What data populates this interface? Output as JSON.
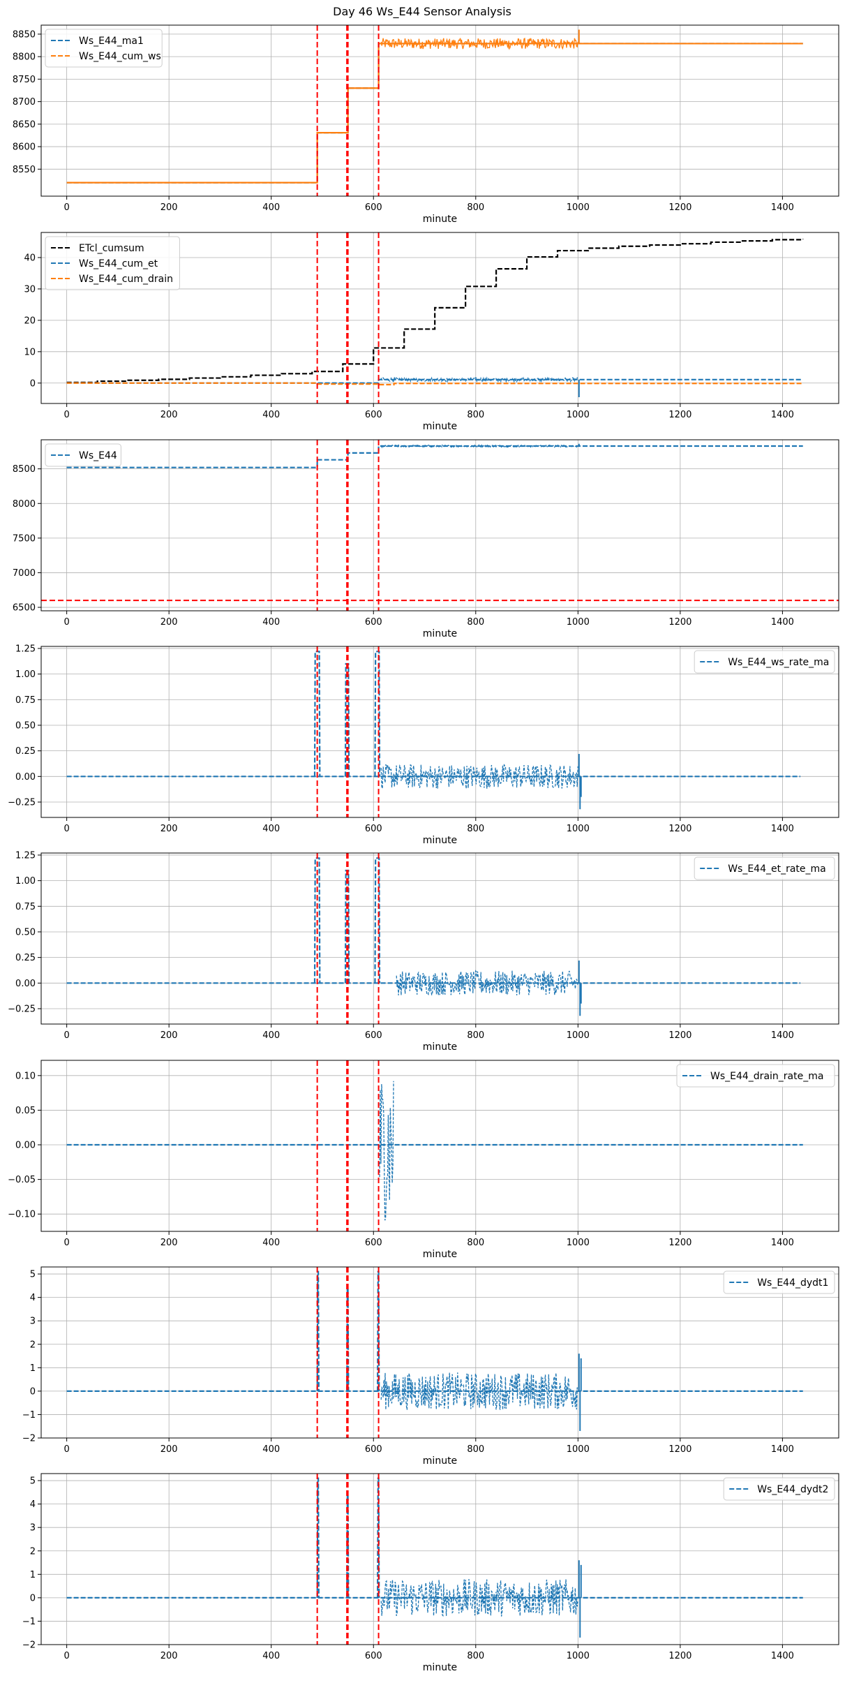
{
  "figure": {
    "title": "Day 46 Ws_E44 Sensor Analysis"
  },
  "colors": {
    "blue": "#1f77b4",
    "orange": "#ff7f0e",
    "black": "#000000",
    "red": "#ff0000",
    "grid": "#b0b0b0"
  },
  "chart_data": [
    {
      "type": "line",
      "xlabel": "minute",
      "xlim": [
        -50,
        1510
      ],
      "ylim": [
        8490,
        8870
      ],
      "yticks": [
        8550,
        8600,
        8650,
        8700,
        8750,
        8800,
        8850
      ],
      "xticks": [
        0,
        200,
        400,
        600,
        800,
        1000,
        1200,
        1400
      ],
      "grid": true,
      "legend": "top-left",
      "vlines": [
        490,
        548,
        550,
        610
      ],
      "hlines": [],
      "series": [
        {
          "name": "Ws_E44_ma1",
          "color": "#1f77b4",
          "dashed": true,
          "kind": "step",
          "steps": [
            [
              0,
              8520
            ],
            [
              490,
              8631
            ],
            [
              550,
              8730
            ],
            [
              610,
              8829
            ],
            [
              1440,
              8829
            ]
          ]
        },
        {
          "name": "Ws_E44_cum_ws",
          "color": "#ff7f0e",
          "dashed": false,
          "kind": "step",
          "steps": [
            [
              0,
              8520
            ],
            [
              490,
              8631
            ],
            [
              550,
              8730
            ],
            [
              610,
              8829
            ],
            [
              1440,
              8829
            ]
          ],
          "noise": [
            [
              615,
              1000,
              8829,
              12
            ]
          ],
          "spikes": [
            [
              1002,
              8860
            ]
          ]
        }
      ]
    },
    {
      "type": "line",
      "xlabel": "minute",
      "xlim": [
        -50,
        1510
      ],
      "ylim": [
        -6.5,
        48
      ],
      "yticks": [
        0,
        10,
        20,
        30,
        40
      ],
      "xticks": [
        0,
        200,
        400,
        600,
        800,
        1000,
        1200,
        1400
      ],
      "grid": true,
      "legend": "top-left",
      "vlines": [
        490,
        548,
        550,
        610
      ],
      "hlines": [],
      "series": [
        {
          "name": "ETcl_cumsum",
          "color": "#000000",
          "dashed": true,
          "kind": "step",
          "steps": [
            [
              0,
              0.2
            ],
            [
              60,
              0.6
            ],
            [
              120,
              0.9
            ],
            [
              180,
              1.2
            ],
            [
              240,
              1.6
            ],
            [
              300,
              2.0
            ],
            [
              360,
              2.5
            ],
            [
              420,
              3.0
            ],
            [
              480,
              3.7
            ],
            [
              540,
              6.1
            ],
            [
              600,
              11.2
            ],
            [
              660,
              17.2
            ],
            [
              720,
              24.0
            ],
            [
              780,
              30.8
            ],
            [
              840,
              36.4
            ],
            [
              900,
              40.2
            ],
            [
              960,
              42.2
            ],
            [
              1020,
              43.0
            ],
            [
              1080,
              43.6
            ],
            [
              1140,
              44.0
            ],
            [
              1200,
              44.4
            ],
            [
              1260,
              44.9
            ],
            [
              1320,
              45.3
            ],
            [
              1380,
              45.7
            ],
            [
              1440,
              45.9
            ]
          ]
        },
        {
          "name": "Ws_E44_cum_et",
          "color": "#1f77b4",
          "dashed": true,
          "kind": "step",
          "steps": [
            [
              0,
              0
            ],
            [
              490,
              0
            ],
            [
              610,
              1.1
            ],
            [
              1440,
              1.1
            ]
          ],
          "noise": [
            [
              615,
              1000,
              1.1,
              0.6
            ]
          ],
          "spikes": [
            [
              1002,
              -4.5
            ]
          ]
        },
        {
          "name": "Ws_E44_cum_drain",
          "color": "#ff7f0e",
          "dashed": true,
          "kind": "step",
          "steps": [
            [
              0,
              0
            ],
            [
              490,
              -0.3
            ],
            [
              610,
              -0.5
            ],
            [
              640,
              -0.1
            ],
            [
              1440,
              -0.1
            ]
          ]
        }
      ]
    },
    {
      "type": "line",
      "xlabel": "minute",
      "xlim": [
        -50,
        1510
      ],
      "ylim": [
        6450,
        8920
      ],
      "yticks": [
        6500,
        7000,
        7500,
        8000,
        8500
      ],
      "xticks": [
        0,
        200,
        400,
        600,
        800,
        1000,
        1200,
        1400
      ],
      "grid": true,
      "legend": "top-left",
      "vlines": [
        490,
        548,
        550,
        610
      ],
      "hlines": [
        6600
      ],
      "series": [
        {
          "name": "Ws_E44",
          "color": "#1f77b4",
          "dashed": true,
          "kind": "step",
          "steps": [
            [
              0,
              8520
            ],
            [
              490,
              8631
            ],
            [
              550,
              8730
            ],
            [
              610,
              8829
            ],
            [
              1440,
              8829
            ]
          ],
          "noise": [
            [
              615,
              1000,
              8829,
              15
            ]
          ],
          "spikes": [
            [
              1002,
              8862
            ]
          ]
        }
      ]
    },
    {
      "type": "line",
      "xlabel": "minute",
      "xlim": [
        -50,
        1510
      ],
      "ylim": [
        -0.4,
        1.27
      ],
      "yticks": [
        -0.25,
        0.0,
        0.25,
        0.5,
        0.75,
        1.0,
        1.25
      ],
      "tickDecimals": 2,
      "xticks": [
        0,
        200,
        400,
        600,
        800,
        1000,
        1200,
        1400
      ],
      "grid": true,
      "legend": "top-right",
      "vlines": [
        490,
        548,
        550,
        610
      ],
      "hlines": [],
      "series": [
        {
          "name": "Ws_E44_ws_rate_ma",
          "color": "#1f77b4",
          "dashed": true,
          "kind": "pulses",
          "base": 0.0,
          "xmax": 1435,
          "pulses": [
            [
              485,
              495,
              1.22
            ],
            [
              545,
              552,
              1.1
            ],
            [
              603,
              612,
              1.22
            ]
          ],
          "noise": [
            [
              615,
              1000,
              0.0,
              0.12
            ]
          ],
          "spikes": [
            [
              1002,
              0.22
            ],
            [
              1004,
              -0.32
            ],
            [
              1006,
              -0.2
            ]
          ]
        }
      ]
    },
    {
      "type": "line",
      "xlabel": "minute",
      "xlim": [
        -50,
        1510
      ],
      "ylim": [
        -0.4,
        1.27
      ],
      "yticks": [
        -0.25,
        0.0,
        0.25,
        0.5,
        0.75,
        1.0,
        1.25
      ],
      "tickDecimals": 2,
      "xticks": [
        0,
        200,
        400,
        600,
        800,
        1000,
        1200,
        1400
      ],
      "grid": true,
      "legend": "top-right",
      "vlines": [
        490,
        548,
        550,
        610
      ],
      "hlines": [],
      "series": [
        {
          "name": "Ws_E44_et_rate_ma",
          "color": "#1f77b4",
          "dashed": true,
          "kind": "pulses",
          "base": 0.0,
          "xmax": 1435,
          "pulses": [
            [
              485,
              495,
              1.22
            ],
            [
              545,
              552,
              1.1
            ],
            [
              603,
              612,
              1.22
            ]
          ],
          "noise": [
            [
              645,
              1000,
              0.0,
              0.12
            ]
          ],
          "spikes": [
            [
              1002,
              0.22
            ],
            [
              1004,
              -0.32
            ],
            [
              1006,
              -0.2
            ]
          ]
        }
      ]
    },
    {
      "type": "line",
      "xlabel": "minute",
      "xlim": [
        -50,
        1510
      ],
      "ylim": [
        -0.125,
        0.122
      ],
      "yticks": [
        -0.1,
        -0.05,
        0.0,
        0.05,
        0.1
      ],
      "tickDecimals": 2,
      "xticks": [
        0,
        200,
        400,
        600,
        800,
        1000,
        1200,
        1400
      ],
      "grid": true,
      "legend": "top-right",
      "vlines": [
        490,
        548,
        550,
        610
      ],
      "hlines": [],
      "series": [
        {
          "name": "Ws_E44_drain_rate_ma",
          "color": "#1f77b4",
          "dashed": true,
          "kind": "pulses",
          "base": 0.0,
          "xmax": 1440,
          "pulses": [],
          "noise": [
            [
              612,
              640,
              0.0,
              0.11
            ]
          ],
          "spikes": []
        }
      ]
    },
    {
      "type": "line",
      "xlabel": "minute",
      "xlim": [
        -50,
        1510
      ],
      "ylim": [
        -2,
        5.3
      ],
      "yticks": [
        -2,
        -1,
        0,
        1,
        2,
        3,
        4,
        5
      ],
      "xticks": [
        0,
        200,
        400,
        600,
        800,
        1000,
        1200,
        1400
      ],
      "grid": true,
      "legend": "top-right",
      "vlines": [
        490,
        548,
        550,
        610
      ],
      "hlines": [],
      "series": [
        {
          "name": "Ws_E44_dydt1",
          "color": "#1f77b4",
          "dashed": true,
          "kind": "pulses",
          "base": 0.0,
          "xmax": 1440,
          "pulses": [
            [
              490,
              493,
              5.1
            ],
            [
              548,
              551,
              4.4
            ],
            [
              608,
              611,
              5.1
            ]
          ],
          "noise": [
            [
              615,
              1000,
              0.0,
              0.8
            ]
          ],
          "spikes": [
            [
              1002,
              1.6
            ],
            [
              1004,
              -1.7
            ],
            [
              1006,
              1.4
            ]
          ]
        }
      ]
    },
    {
      "type": "line",
      "xlabel": "minute",
      "xlim": [
        -50,
        1510
      ],
      "ylim": [
        -2,
        5.3
      ],
      "yticks": [
        -2,
        -1,
        0,
        1,
        2,
        3,
        4,
        5
      ],
      "xticks": [
        0,
        200,
        400,
        600,
        800,
        1000,
        1200,
        1400
      ],
      "grid": true,
      "legend": "top-right",
      "vlines": [
        490,
        548,
        550,
        610
      ],
      "hlines": [],
      "series": [
        {
          "name": "Ws_E44_dydt2",
          "color": "#1f77b4",
          "dashed": true,
          "kind": "pulses",
          "base": 0.0,
          "xmax": 1440,
          "pulses": [
            [
              490,
              493,
              5.1
            ],
            [
              548,
              551,
              4.4
            ],
            [
              608,
              611,
              5.1
            ]
          ],
          "noise": [
            [
              615,
              1000,
              0.0,
              0.8
            ]
          ],
          "spikes": [
            [
              1002,
              1.6
            ],
            [
              1004,
              -1.7
            ],
            [
              1006,
              1.4
            ]
          ]
        }
      ]
    }
  ]
}
